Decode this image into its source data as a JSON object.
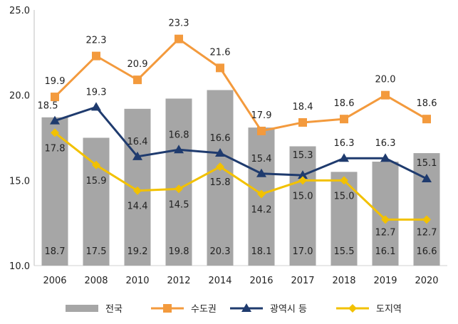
{
  "chart_data": {
    "type": "bar+line",
    "title": "",
    "xlabel": "",
    "ylabel": "",
    "ylim": [
      10.0,
      25.0
    ],
    "yticks": [
      "10.0",
      "15.0",
      "20.0",
      "25.0"
    ],
    "categories": [
      "2006",
      "2008",
      "2010",
      "2012",
      "2014",
      "2016",
      "2017",
      "2018",
      "2019",
      "2020"
    ],
    "series": [
      {
        "name": "전국",
        "kind": "bar",
        "color": "#a6a6a6",
        "values": [
          18.7,
          17.5,
          19.2,
          19.8,
          20.3,
          18.1,
          17.0,
          15.5,
          16.1,
          16.6
        ],
        "labels": [
          "18.7",
          "17.5",
          "19.2",
          "19.8",
          "20.3",
          "18.1",
          "17.0",
          "15.5",
          "16.1",
          "16.6"
        ]
      },
      {
        "name": "수도권",
        "kind": "line",
        "marker": "square",
        "color": "#f39a3d",
        "values": [
          19.9,
          22.3,
          20.9,
          23.3,
          21.6,
          17.9,
          18.4,
          18.6,
          20.0,
          18.6
        ],
        "labels": [
          "19.9",
          "22.3",
          "20.9",
          "23.3",
          "21.6",
          "17.9",
          "18.4",
          "18.6",
          "20.0",
          "18.6"
        ]
      },
      {
        "name": "광역시 등",
        "kind": "line",
        "marker": "triangle",
        "color": "#1f3b6e",
        "values": [
          18.5,
          19.3,
          16.4,
          16.8,
          16.6,
          15.4,
          15.3,
          16.3,
          16.3,
          15.1
        ],
        "labels": [
          "18.5",
          "19.3",
          "16.4",
          "16.8",
          "16.6",
          "15.4",
          "15.3",
          "16.3",
          "16.3",
          "15.1"
        ]
      },
      {
        "name": "도지역",
        "kind": "line",
        "marker": "diamond",
        "color": "#f2c100",
        "values": [
          17.8,
          15.9,
          14.4,
          14.5,
          15.8,
          14.2,
          15.0,
          15.0,
          12.7,
          12.7
        ],
        "labels": [
          "17.8",
          "15.9",
          "14.4",
          "14.5",
          "15.8",
          "14.2",
          "15.0",
          "15.0",
          "12.7",
          "12.7"
        ]
      }
    ],
    "legend": "bottom"
  }
}
